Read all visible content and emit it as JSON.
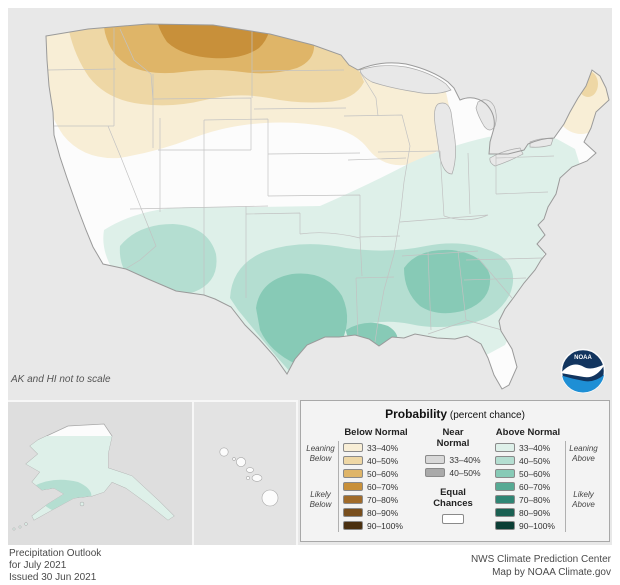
{
  "map": {
    "note": "AK and HI not to scale",
    "colors": {
      "background": "#e8e8e8",
      "land": "#fcfcfc",
      "outline": "#9a9a9a",
      "state_line": "#c2c2c2"
    }
  },
  "logo": {
    "text": "NOAA"
  },
  "legend": {
    "title": "Probability",
    "subtitle": " (percent chance)",
    "below": {
      "header": "Below Normal",
      "leaning": "Leaning Below",
      "likely": "Likely Below",
      "entries": [
        {
          "label": "33–40%",
          "color": "#f8eed6"
        },
        {
          "label": "40–50%",
          "color": "#eed7a5"
        },
        {
          "label": "50–60%",
          "color": "#dfb568"
        },
        {
          "label": "60–70%",
          "color": "#c8903a"
        },
        {
          "label": "70–80%",
          "color": "#a06b2a"
        },
        {
          "label": "80–90%",
          "color": "#784e1d"
        },
        {
          "label": "90–100%",
          "color": "#4a3010"
        }
      ]
    },
    "near": {
      "header": "Near\nNormal",
      "entries": [
        {
          "label": "33–40%",
          "color": "#d8d8d8"
        },
        {
          "label": "40–50%",
          "color": "#a9a9a9"
        }
      ],
      "equal_header": "Equal\nChances",
      "equal_color": "#ffffff"
    },
    "above": {
      "header": "Above Normal",
      "leaning": "Leaning Above",
      "likely": "Likely Above",
      "entries": [
        {
          "label": "33–40%",
          "color": "#def0e9"
        },
        {
          "label": "40–50%",
          "color": "#b4ded1"
        },
        {
          "label": "50–60%",
          "color": "#87cab6"
        },
        {
          "label": "60–70%",
          "color": "#57aa94"
        },
        {
          "label": "70–80%",
          "color": "#2f8574"
        },
        {
          "label": "80–90%",
          "color": "#1a6052"
        },
        {
          "label": "90–100%",
          "color": "#0b3e35"
        }
      ]
    }
  },
  "footer": {
    "left_line1": "Precipitation Outlook",
    "left_line2": "for July 2021",
    "left_line3": "Issued 30 Jun 2021",
    "right_line1": "NWS Climate Prediction Center",
    "right_line2": "Map by NOAA Climate.gov"
  }
}
